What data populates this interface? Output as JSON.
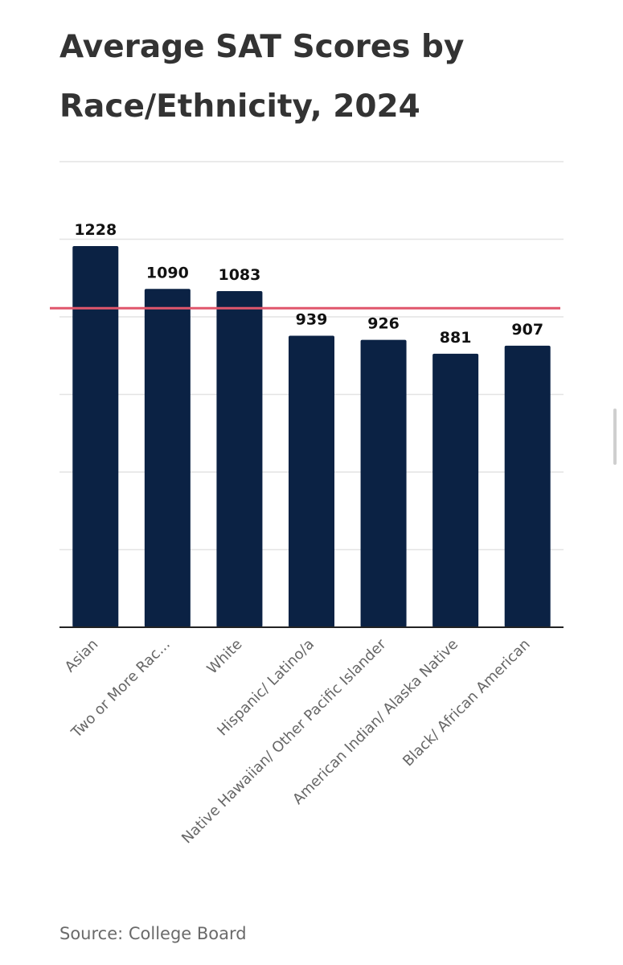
{
  "title": "Average SAT Scores by Race/Ethnicity, 2024",
  "source": "Source: College Board",
  "colors": {
    "bar": "#0b2244",
    "reference_line": "#e0566c",
    "grid": "#e4e4e4",
    "axis": "#222222",
    "tick_label": "#666666"
  },
  "chart_data": {
    "type": "bar",
    "title": "Average SAT Scores by Race/Ethnicity, 2024",
    "xlabel": "",
    "ylabel": "",
    "categories": [
      "Asian",
      "Two or More Rac...",
      "White",
      "Hispanic/ Latino/a",
      "Native Hawaiian/ Other Pacific Islander",
      "American Indian/ Alaska Native",
      "Black/ African American"
    ],
    "series": [
      {
        "values": [
          1228,
          1090,
          1083,
          939,
          926,
          881,
          907
        ]
      }
    ],
    "data_labels": [
      "1228",
      "1090",
      "1083",
      "939",
      "926",
      "881",
      "907"
    ],
    "reference_line": 1028,
    "ylim": [
      0,
      1500
    ],
    "y_gridlines": [
      250,
      500,
      750,
      1000,
      1250,
      1500
    ],
    "grid": true,
    "y_tick_labels_visible": false,
    "legend": "none"
  }
}
